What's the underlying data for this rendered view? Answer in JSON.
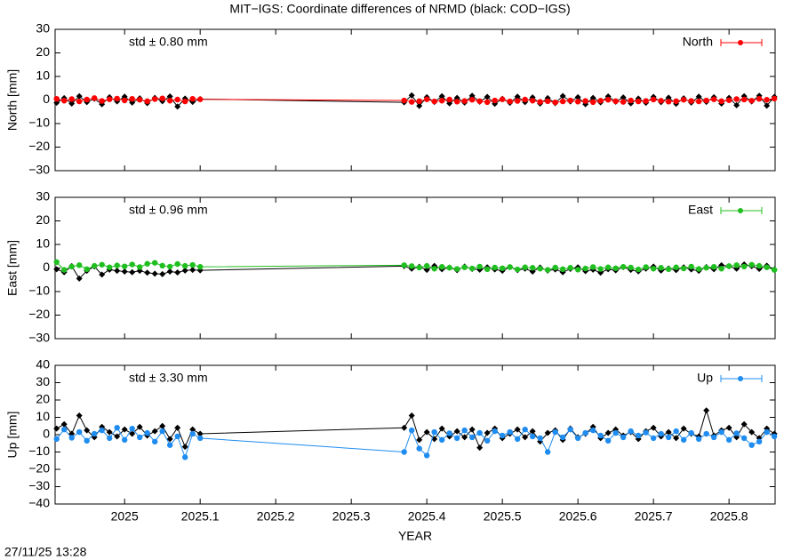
{
  "title": "MIT−IGS: Coordinate differences of NRMD (black: COD−IGS)",
  "timestamp": "27/11/25 13:28",
  "chart_data": [
    {
      "type": "line",
      "ylabel": "North [mm]",
      "annotation": "std ± 0.80 mm",
      "annotation_color": "#ff0000",
      "xlim": [
        2024.908,
        2025.861
      ],
      "xticks": [
        2025,
        2025.1,
        2025.2,
        2025.3,
        2025.4,
        2025.5,
        2025.6,
        2025.7,
        2025.8
      ],
      "ylim": [
        -30,
        30
      ],
      "yticks": [
        {
          "value": -30,
          "label": "−30"
        },
        {
          "value": -20,
          "label": "−20"
        },
        {
          "value": -10,
          "label": "−10"
        },
        0,
        10,
        20,
        30
      ],
      "legend": "upper right",
      "x": [
        2024.91,
        2024.92,
        2024.93,
        2024.94,
        2024.95,
        2024.96,
        2024.97,
        2024.98,
        2024.99,
        2025.0,
        2025.01,
        2025.02,
        2025.03,
        2025.04,
        2025.05,
        2025.06,
        2025.07,
        2025.08,
        2025.09,
        2025.1,
        2025.37,
        2025.38,
        2025.39,
        2025.4,
        2025.41,
        2025.42,
        2025.43,
        2025.44,
        2025.45,
        2025.46,
        2025.47,
        2025.48,
        2025.49,
        2025.5,
        2025.51,
        2025.52,
        2025.53,
        2025.54,
        2025.55,
        2025.56,
        2025.57,
        2025.58,
        2025.59,
        2025.6,
        2025.61,
        2025.62,
        2025.63,
        2025.64,
        2025.65,
        2025.66,
        2025.67,
        2025.68,
        2025.69,
        2025.7,
        2025.71,
        2025.72,
        2025.73,
        2025.74,
        2025.75,
        2025.76,
        2025.77,
        2025.78,
        2025.79,
        2025.8,
        2025.81,
        2025.82,
        2025.83,
        2025.84,
        2025.85,
        2025.86
      ],
      "series": [
        {
          "color": "#000000",
          "marker": "diamond",
          "values": [
            -1.2,
            0.8,
            -1.5,
            1.6,
            -0.9,
            0.5,
            -1.8,
            1.2,
            -0.6,
            1.4,
            -1.1,
            0.7,
            -1.3,
            0.9,
            -0.5,
            1.5,
            -2.8,
            0.6,
            -0.8,
            0.4,
            -1.0,
            2.0,
            -2.5,
            1.2,
            -0.8,
            1.6,
            -1.4,
            0.9,
            -1.1,
            1.8,
            -0.7,
            1.3,
            -1.6,
            0.5,
            -1.2,
            1.4,
            -0.9,
            1.1,
            -1.5,
            0.8,
            -1.3,
            1.7,
            -0.6,
            1.2,
            -1.8,
            0.9,
            -1.0,
            1.5,
            -0.7,
            1.1,
            -1.4,
            0.6,
            -1.2,
            1.3,
            -0.9,
            1.0,
            -1.6,
            0.7,
            -1.1,
            1.4,
            -0.8,
            1.2,
            -1.5,
            0.9,
            -2.2,
            1.6,
            -0.6,
            1.8,
            -2.4,
            1.3
          ]
        },
        {
          "name": "North",
          "color": "#ff0000",
          "marker": "circle",
          "values": [
            0.5,
            -0.3,
            0.4,
            -0.6,
            0.2,
            0.8,
            -0.4,
            0.3,
            0.6,
            -0.2,
            0.5,
            0.1,
            -0.5,
            0.4,
            0.7,
            -0.3,
            0.2,
            -0.6,
            0.5,
            0.3,
            -0.2,
            -0.8,
            -0.5,
            0.3,
            -0.6,
            -0.3,
            0.2,
            -0.7,
            -0.4,
            0.1,
            -0.5,
            -0.9,
            -0.2,
            0.3,
            -0.6,
            -0.4,
            0.2,
            -0.3,
            -0.8,
            -0.5,
            -1.0,
            -0.6,
            -0.2,
            -0.7,
            -0.4,
            -0.9,
            -0.3,
            0.1,
            -0.5,
            -0.8,
            -0.2,
            -0.6,
            -0.4,
            0.2,
            -0.3,
            -0.7,
            -0.5,
            0.1,
            -0.4,
            -0.6,
            -0.2,
            0.3,
            -0.5,
            -0.1,
            0.4,
            0.2,
            -0.3,
            0.5,
            0.1,
            0.6
          ]
        }
      ]
    },
    {
      "type": "line",
      "ylabel": "East [mm]",
      "annotation": "std ± 0.96 mm",
      "annotation_color": "#1fbf1f",
      "xlim": [
        2024.908,
        2025.861
      ],
      "xticks": [
        2025,
        2025.1,
        2025.2,
        2025.3,
        2025.4,
        2025.5,
        2025.6,
        2025.7,
        2025.8
      ],
      "ylim": [
        -30,
        30
      ],
      "yticks": [
        {
          "value": -30,
          "label": "−30"
        },
        {
          "value": -20,
          "label": "−20"
        },
        {
          "value": -10,
          "label": "−10"
        },
        0,
        10,
        20,
        30
      ],
      "legend": "upper right",
      "x": [
        2024.91,
        2024.92,
        2024.93,
        2024.94,
        2024.95,
        2024.96,
        2024.97,
        2024.98,
        2024.99,
        2025.0,
        2025.01,
        2025.02,
        2025.03,
        2025.04,
        2025.05,
        2025.06,
        2025.07,
        2025.08,
        2025.09,
        2025.1,
        2025.37,
        2025.38,
        2025.39,
        2025.4,
        2025.41,
        2025.42,
        2025.43,
        2025.44,
        2025.45,
        2025.46,
        2025.47,
        2025.48,
        2025.49,
        2025.5,
        2025.51,
        2025.52,
        2025.53,
        2025.54,
        2025.55,
        2025.56,
        2025.57,
        2025.58,
        2025.59,
        2025.6,
        2025.61,
        2025.62,
        2025.63,
        2025.64,
        2025.65,
        2025.66,
        2025.67,
        2025.68,
        2025.69,
        2025.7,
        2025.71,
        2025.72,
        2025.73,
        2025.74,
        2025.75,
        2025.76,
        2025.77,
        2025.78,
        2025.79,
        2025.8,
        2025.81,
        2025.82,
        2025.83,
        2025.84,
        2025.85,
        2025.86
      ],
      "series": [
        {
          "color": "#000000",
          "marker": "diamond",
          "values": [
            -0.5,
            -1.8,
            0.8,
            -4.5,
            -1.2,
            0.6,
            -2.8,
            -0.7,
            -1.2,
            -1.5,
            -1.8,
            -1.2,
            -2.0,
            -2.4,
            -2.6,
            -1.5,
            -1.9,
            -1.1,
            -0.8,
            -1.0,
            0.8,
            -0.3,
            0.5,
            -0.8,
            0.9,
            -0.5,
            0.2,
            -0.9,
            0.6,
            -0.4,
            -0.7,
            0.3,
            -0.6,
            -1.2,
            0.4,
            -0.9,
            -0.3,
            -1.5,
            0.2,
            -1.1,
            -0.6,
            -1.8,
            -0.4,
            0.3,
            -1.3,
            -0.7,
            -2.0,
            -0.5,
            -1.0,
            0.4,
            -0.8,
            -1.4,
            -0.3,
            0.6,
            -1.1,
            -0.2,
            -0.9,
            0.3,
            -0.6,
            -1.2,
            0.4,
            -0.5,
            1.2,
            0.7,
            -0.3,
            1.5,
            0.8,
            -0.4,
            1.0,
            -0.6
          ]
        },
        {
          "name": "East",
          "color": "#1fbf1f",
          "marker": "circle",
          "values": [
            2.5,
            -0.8,
            0.6,
            1.2,
            -0.5,
            0.9,
            1.4,
            0.3,
            1.1,
            0.7,
            1.5,
            0.4,
            1.8,
            2.2,
            1.0,
            0.6,
            1.7,
            0.9,
            1.3,
            0.5,
            1.2,
            0.8,
            0.2,
            0.9,
            -0.3,
            0.5,
            0.1,
            -0.4,
            0.3,
            -0.2,
            0.6,
            -0.5,
            0.2,
            -0.1,
            0.4,
            -0.6,
            0.3,
            0.1,
            -0.3,
            -0.8,
            0.2,
            -0.5,
            0.1,
            -0.7,
            -0.2,
            0.4,
            -0.4,
            0.3,
            -0.1,
            0.5,
            0.2,
            -0.6,
            0.4,
            -0.3,
            0.1,
            -0.5,
            0.3,
            -0.2,
            0.6,
            -0.4,
            0.1,
            0.5,
            -0.3,
            0.8,
            1.2,
            0.6,
            1.4,
            0.9,
            0.3,
            -0.8
          ]
        }
      ]
    },
    {
      "type": "line",
      "ylabel": "Up [mm]",
      "annotation": "std ± 3.30 mm",
      "annotation_color": "#1e8cf0",
      "xlabel": "YEAR",
      "xlim": [
        2024.908,
        2025.861
      ],
      "xticks": [
        2025,
        2025.1,
        2025.2,
        2025.3,
        2025.4,
        2025.5,
        2025.6,
        2025.7,
        2025.8
      ],
      "ylim": [
        -40,
        40
      ],
      "yticks": [
        {
          "value": -40,
          "label": "−40"
        },
        {
          "value": -30,
          "label": "−30"
        },
        {
          "value": -20,
          "label": "−20"
        },
        {
          "value": -10,
          "label": "−10"
        },
        0,
        10,
        20,
        30,
        40
      ],
      "legend": "upper right",
      "x": [
        2024.91,
        2024.92,
        2024.93,
        2024.94,
        2024.95,
        2024.96,
        2024.97,
        2024.98,
        2024.99,
        2025.0,
        2025.01,
        2025.02,
        2025.03,
        2025.04,
        2025.05,
        2025.06,
        2025.07,
        2025.08,
        2025.09,
        2025.1,
        2025.37,
        2025.38,
        2025.39,
        2025.4,
        2025.41,
        2025.42,
        2025.43,
        2025.44,
        2025.45,
        2025.46,
        2025.47,
        2025.48,
        2025.49,
        2025.5,
        2025.51,
        2025.52,
        2025.53,
        2025.54,
        2025.55,
        2025.56,
        2025.57,
        2025.58,
        2025.59,
        2025.6,
        2025.61,
        2025.62,
        2025.63,
        2025.64,
        2025.65,
        2025.66,
        2025.67,
        2025.68,
        2025.69,
        2025.7,
        2025.71,
        2025.72,
        2025.73,
        2025.74,
        2025.75,
        2025.76,
        2025.77,
        2025.78,
        2025.79,
        2025.8,
        2025.81,
        2025.82,
        2025.83,
        2025.84,
        2025.85,
        2025.86
      ],
      "series": [
        {
          "color": "#000000",
          "marker": "diamond",
          "values": [
            3.5,
            6.0,
            0.5,
            11.0,
            2.5,
            -1.5,
            4.5,
            1.5,
            -1.0,
            3.0,
            0.5,
            4.5,
            -0.5,
            2.0,
            5.0,
            -2.5,
            4.0,
            -7.0,
            3.0,
            0.5,
            4.0,
            11.0,
            -3.0,
            1.5,
            -2.5,
            3.5,
            -1.0,
            2.0,
            -1.5,
            3.0,
            -7.5,
            1.0,
            3.5,
            -2.0,
            0.5,
            3.0,
            -1.5,
            2.0,
            -4.0,
            1.0,
            2.5,
            -3.0,
            3.5,
            -1.5,
            0.5,
            4.5,
            -2.0,
            1.0,
            3.0,
            -0.5,
            1.5,
            -2.5,
            2.0,
            4.0,
            -1.0,
            1.5,
            -2.0,
            3.5,
            0.5,
            -1.0,
            14.0,
            -0.5,
            2.5,
            4.0,
            -1.5,
            6.0,
            1.5,
            -2.0,
            3.5,
            0.5
          ]
        },
        {
          "name": "Up",
          "color": "#1e8cf0",
          "marker": "circle",
          "values": [
            -2.5,
            3.0,
            -1.8,
            1.5,
            -3.5,
            0.5,
            2.5,
            -2.0,
            4.0,
            -3.0,
            3.5,
            -1.5,
            1.0,
            -4.0,
            2.0,
            -6.0,
            -1.0,
            -13.0,
            0.5,
            -2.0,
            -10.0,
            2.5,
            -8.0,
            -12.0,
            1.5,
            -3.0,
            0.8,
            -2.0,
            2.5,
            -1.5,
            1.0,
            -3.5,
            2.0,
            -0.5,
            1.5,
            -2.5,
            3.0,
            -1.0,
            -2.0,
            -10.0,
            1.5,
            -1.5,
            3.0,
            -2.0,
            1.0,
            2.5,
            -0.5,
            -3.5,
            1.0,
            -1.5,
            2.0,
            -0.5,
            1.2,
            -2.0,
            0.5,
            -1.5,
            2.0,
            -3.0,
            1.0,
            -2.5,
            0.5,
            -1.5,
            1.5,
            -3.0,
            0.8,
            -2.0,
            -6.0,
            -4.0,
            1.5,
            -1.0
          ]
        }
      ]
    }
  ]
}
